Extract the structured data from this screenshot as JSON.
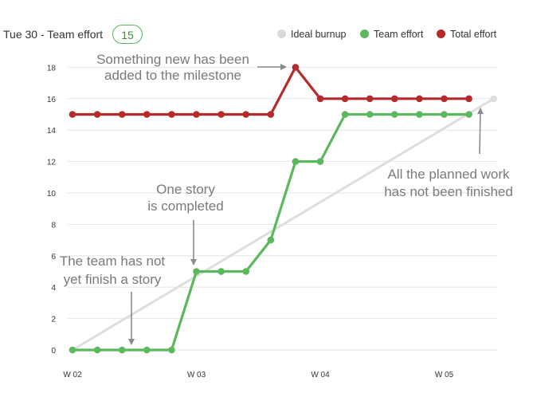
{
  "header": {
    "title": "Tue 30 - Team effort",
    "badge": "15"
  },
  "legend": [
    {
      "label": "Ideal burnup",
      "color": "#d9d9d9"
    },
    {
      "label": "Team effort",
      "color": "#5cb85c"
    },
    {
      "label": "Total effort",
      "color": "#b52a2a"
    }
  ],
  "chart_data": {
    "type": "line",
    "grid": true,
    "legend_position": "top-right",
    "ylim": [
      0,
      18
    ],
    "yticks": [
      0,
      2,
      4,
      6,
      8,
      10,
      12,
      14,
      16,
      18
    ],
    "x_count": 18,
    "x_ticks": [
      {
        "index": 0,
        "label": "W 02"
      },
      {
        "index": 5,
        "label": "W 03"
      },
      {
        "index": 10,
        "label": "W 04"
      },
      {
        "index": 15,
        "label": "W 05"
      }
    ],
    "series": [
      {
        "name": "Ideal burnup",
        "color": "#dedede",
        "points": [
          [
            0,
            0
          ],
          [
            17,
            16
          ]
        ],
        "markers": "end"
      },
      {
        "name": "Team effort",
        "color": "#5cb85c",
        "points": [
          [
            0,
            0
          ],
          [
            1,
            0
          ],
          [
            2,
            0
          ],
          [
            3,
            0
          ],
          [
            4,
            0
          ],
          [
            5,
            5
          ],
          [
            6,
            5
          ],
          [
            7,
            5
          ],
          [
            8,
            7
          ],
          [
            9,
            12
          ],
          [
            10,
            12
          ],
          [
            11,
            15
          ],
          [
            12,
            15
          ],
          [
            13,
            15
          ],
          [
            14,
            15
          ],
          [
            15,
            15
          ],
          [
            16,
            15
          ]
        ],
        "markers": "all"
      },
      {
        "name": "Total effort",
        "color": "#b52a2a",
        "points": [
          [
            0,
            15
          ],
          [
            1,
            15
          ],
          [
            2,
            15
          ],
          [
            3,
            15
          ],
          [
            4,
            15
          ],
          [
            5,
            15
          ],
          [
            6,
            15
          ],
          [
            7,
            15
          ],
          [
            8,
            15
          ],
          [
            9,
            18
          ],
          [
            10,
            16
          ],
          [
            11,
            16
          ],
          [
            12,
            16
          ],
          [
            13,
            16
          ],
          [
            14,
            16
          ],
          [
            15,
            16
          ],
          [
            16,
            16
          ]
        ],
        "markers": "all"
      }
    ],
    "annotations": [
      {
        "lines": [
          "Something new has been",
          "added to the milestone"
        ]
      },
      {
        "lines": [
          "One story",
          "is completed"
        ]
      },
      {
        "lines": [
          "The team has not",
          "yet finish a story"
        ]
      },
      {
        "lines": [
          "All the planned work",
          "has not been finished"
        ]
      }
    ]
  }
}
